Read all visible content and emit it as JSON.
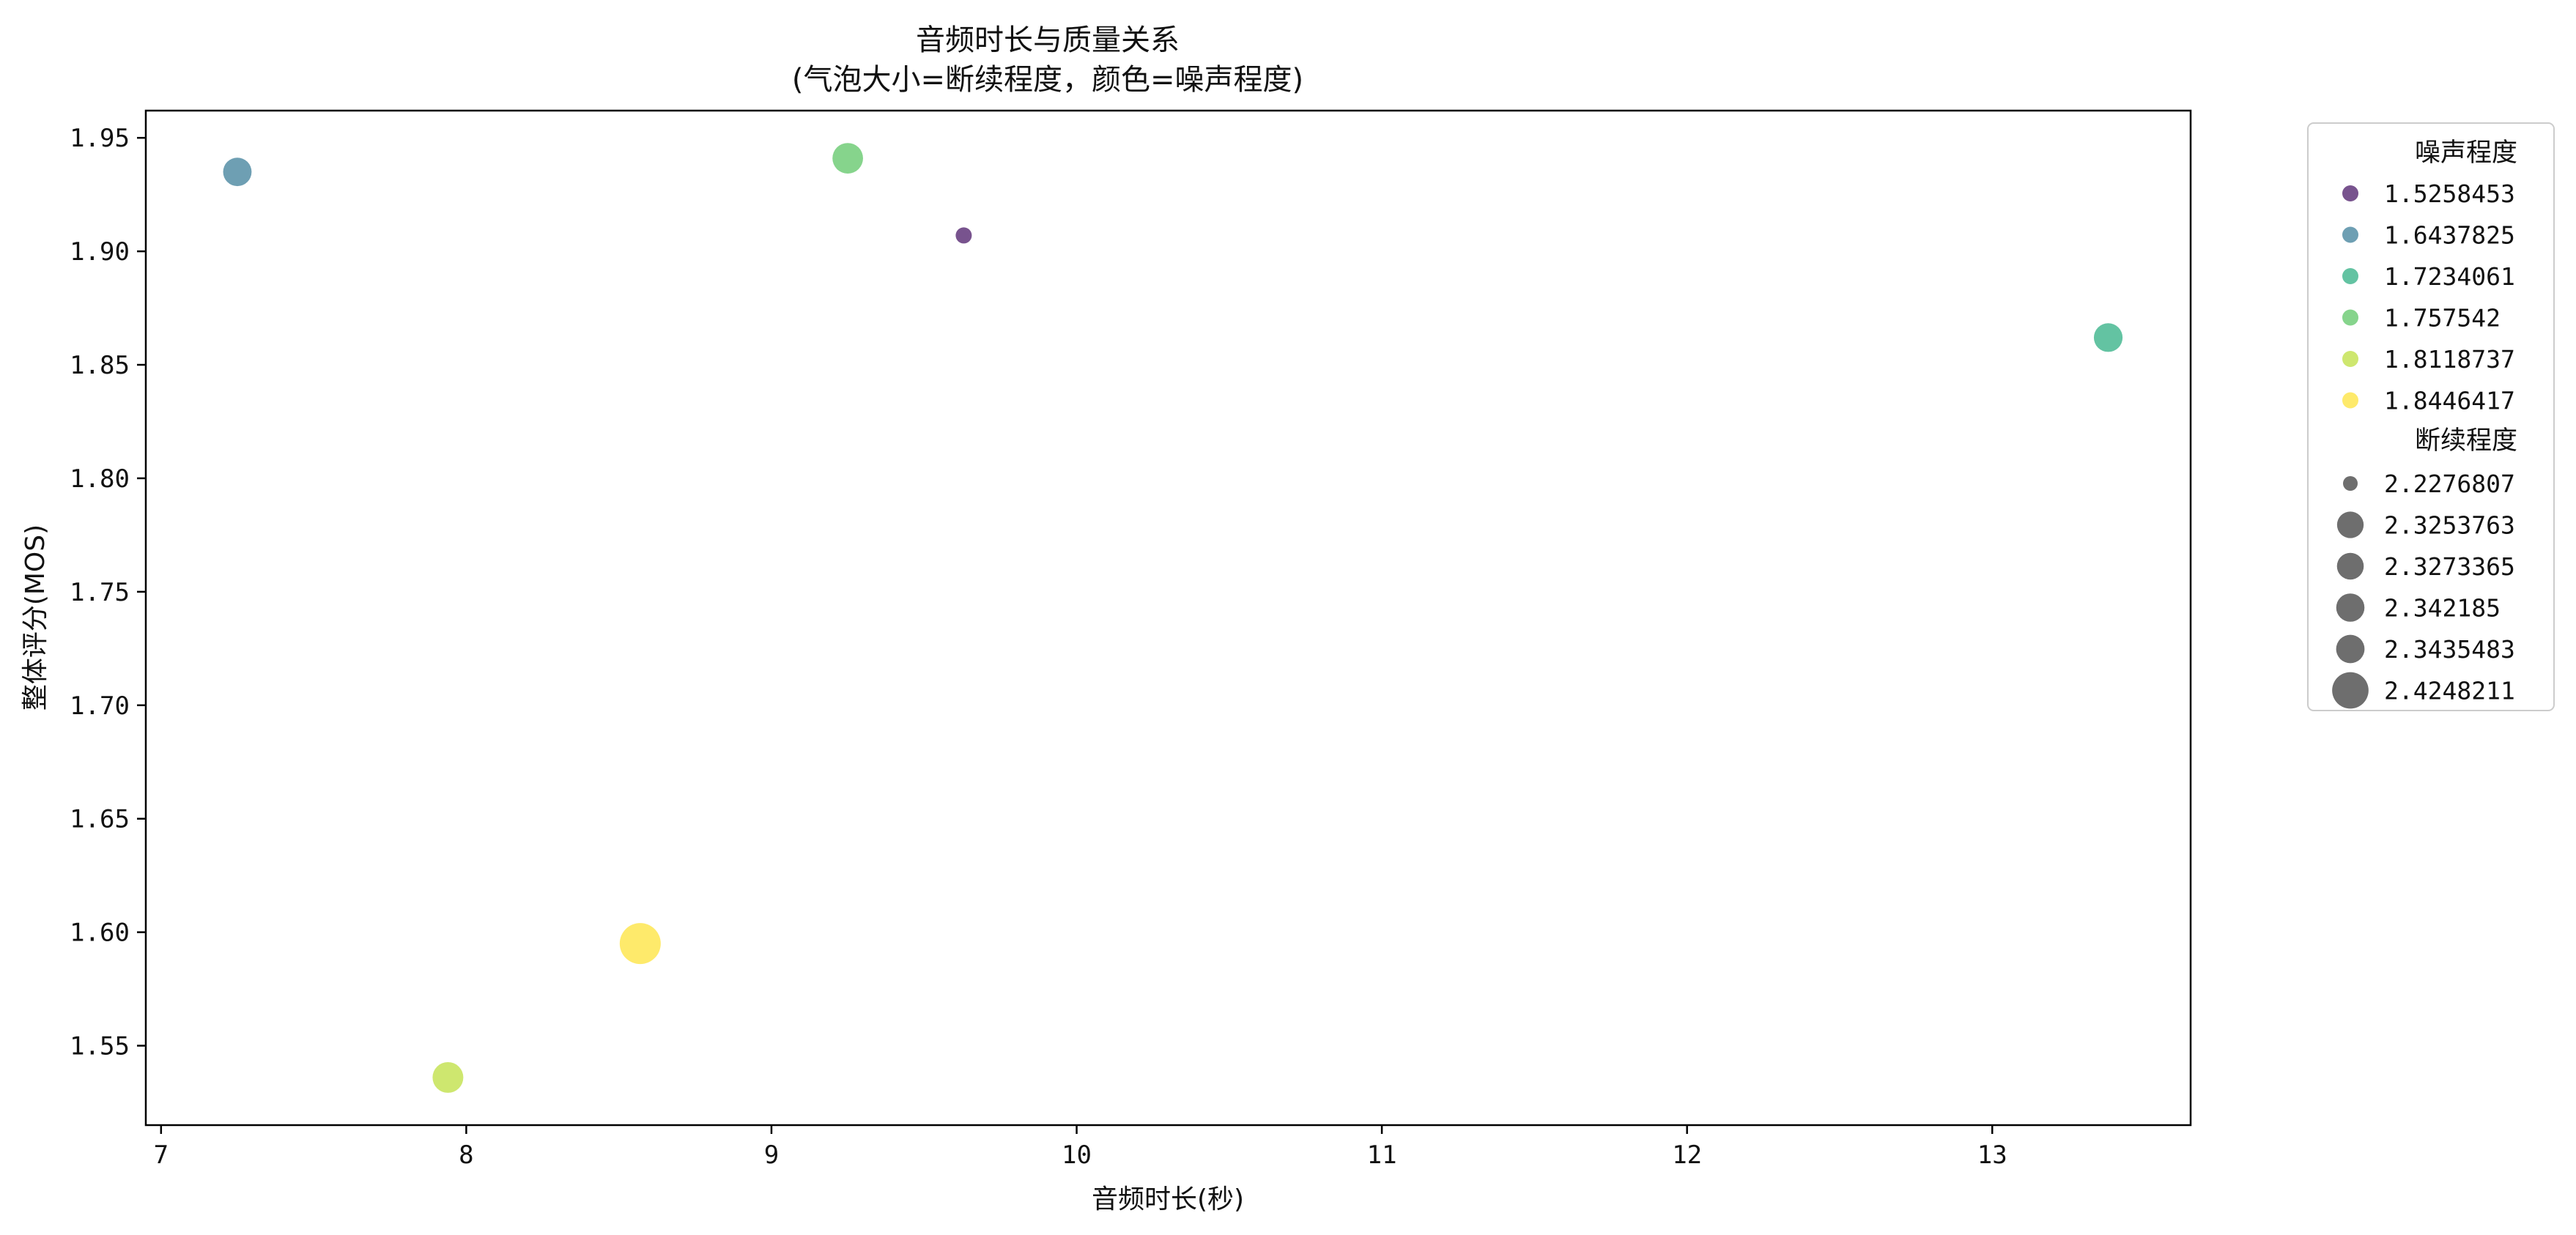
{
  "chart_data": {
    "type": "scatter",
    "title_line1": "音频时长与质量关系",
    "title_line2": "(气泡大小=断续程度，颜色=噪声程度)",
    "xlabel": "音频时长(秒)",
    "ylabel": "整体评分(MOS)",
    "xlim": [
      6.95,
      13.65
    ],
    "ylim": [
      1.515,
      1.962
    ],
    "xticks": [
      "7",
      "8",
      "9",
      "10",
      "11",
      "12",
      "13"
    ],
    "yticks": [
      "1.55",
      "1.60",
      "1.65",
      "1.70",
      "1.75",
      "1.80",
      "1.85",
      "1.90",
      "1.95"
    ],
    "grid": false,
    "legend_position": "outside-right",
    "points": [
      {
        "x": 7.25,
        "y": 1.935,
        "noise": 1.6437825,
        "discontinuity": 2.3253763,
        "color": "#3e7f99"
      },
      {
        "x": 7.94,
        "y": 1.536,
        "noise": 1.8118737,
        "discontinuity": 2.3435483,
        "color": "#bddf3f"
      },
      {
        "x": 8.57,
        "y": 1.595,
        "noise": 1.8446417,
        "discontinuity": 2.4248211,
        "color": "#fde33a"
      },
      {
        "x": 9.25,
        "y": 1.941,
        "noise": 1.757542,
        "discontinuity": 2.342185,
        "color": "#5ec665"
      },
      {
        "x": 9.63,
        "y": 1.907,
        "noise": 1.5258453,
        "discontinuity": 2.2276807,
        "color": "#4b1a68"
      },
      {
        "x": 13.38,
        "y": 1.862,
        "noise": 1.7234061,
        "discontinuity": 2.3273365,
        "color": "#2faf83"
      }
    ],
    "point_opacity": 0.75,
    "legend": {
      "color_title": "噪声程度",
      "color_entries": [
        {
          "label": "1.5258453",
          "color": "#4b1a68"
        },
        {
          "label": "1.6437825",
          "color": "#3e7f99"
        },
        {
          "label": "1.7234061",
          "color": "#2faf83"
        },
        {
          "label": "1.757542",
          "color": "#5ec665"
        },
        {
          "label": "1.8118737",
          "color": "#bddf3f"
        },
        {
          "label": "1.8446417",
          "color": "#fde33a"
        }
      ],
      "size_title": "断续程度",
      "size_entries": [
        {
          "label": "2.2276807",
          "value": 2.2276807
        },
        {
          "label": "2.3253763",
          "value": 2.3253763
        },
        {
          "label": "2.3273365",
          "value": 2.3273365
        },
        {
          "label": "2.342185",
          "value": 2.342185
        },
        {
          "label": "2.3435483",
          "value": 2.3435483
        },
        {
          "label": "2.4248211",
          "value": 2.4248211
        }
      ],
      "size_marker_color": "#555555"
    }
  }
}
